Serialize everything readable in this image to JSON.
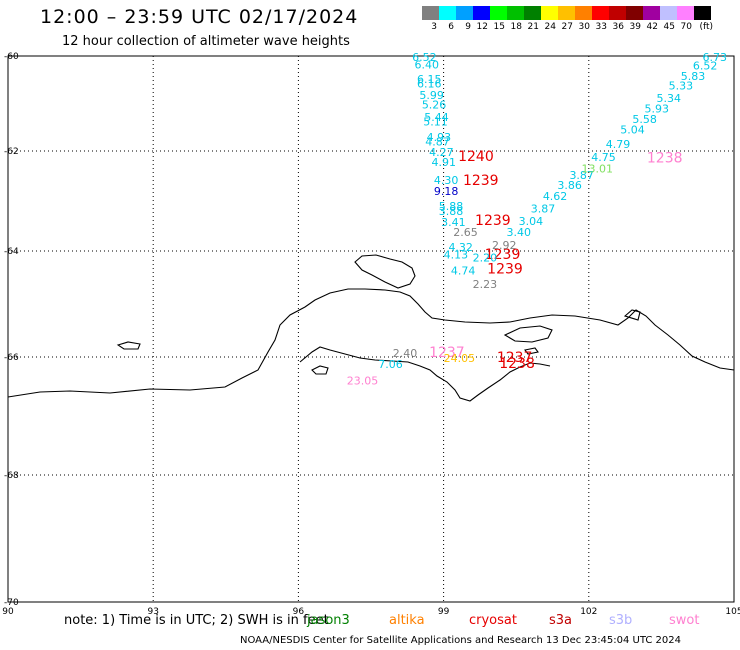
{
  "title": "12:00 – 23:59 UTC 02/17/2024",
  "subtitle": "12 hour collection of altimeter wave heights",
  "colorbar": {
    "colors": [
      "#808080",
      "#00ffff",
      "#00a0ff",
      "#0000ff",
      "#00ff00",
      "#00c000",
      "#008000",
      "#ffff00",
      "#ffc000",
      "#ff8000",
      "#ff0000",
      "#c00000",
      "#800000",
      "#a000a0",
      "#c0c0ff",
      "#ff80ff",
      "#000000"
    ],
    "labels": [
      "3",
      "6",
      "9",
      "12",
      "15",
      "18",
      "21",
      "24",
      "27",
      "30",
      "33",
      "36",
      "39",
      "42",
      "45",
      "70",
      "(ft)"
    ]
  },
  "axes": {
    "lon_ticks": [
      "90",
      "93",
      "96",
      "99",
      "102",
      "105"
    ],
    "lat_ticks": [
      "-60",
      "-62",
      "-64",
      "-66",
      "-68",
      "-70"
    ]
  },
  "observations": [
    {
      "text": "6.52",
      "color": "#00c8e6",
      "lon": 98.35,
      "lat": -60.02
    },
    {
      "text": "6.40",
      "color": "#00c8e6",
      "lon": 98.4,
      "lat": -60.18
    },
    {
      "text": "6.15",
      "color": "#00c8e6",
      "lon": 98.45,
      "lat": -60.48
    },
    {
      "text": "6.16",
      "color": "#00c8e6",
      "lon": 98.45,
      "lat": -60.58
    },
    {
      "text": "5.99",
      "color": "#00c8e6",
      "lon": 98.5,
      "lat": -60.82
    },
    {
      "text": "5.26",
      "color": "#00c8e6",
      "lon": 98.55,
      "lat": -61.02
    },
    {
      "text": "5.44",
      "color": "#00c8e6",
      "lon": 98.6,
      "lat": -61.28
    },
    {
      "text": "5.11",
      "color": "#00c8e6",
      "lon": 98.58,
      "lat": -61.38
    },
    {
      "text": "4.93",
      "color": "#00c8e6",
      "lon": 98.65,
      "lat": -61.7
    },
    {
      "text": "4.87",
      "color": "#00c8e6",
      "lon": 98.62,
      "lat": -61.8
    },
    {
      "text": "4.27",
      "color": "#00c8e6",
      "lon": 98.7,
      "lat": -62.02
    },
    {
      "text": "4.91",
      "color": "#00c8e6",
      "lon": 98.75,
      "lat": -62.22
    },
    {
      "text": "1240",
      "color": "#e60000",
      "lon": 99.3,
      "lat": -62.12,
      "big": true
    },
    {
      "text": "4.30",
      "color": "#00c8e6",
      "lon": 98.8,
      "lat": -62.58
    },
    {
      "text": "1239",
      "color": "#e60000",
      "lon": 99.4,
      "lat": -62.6,
      "big": true
    },
    {
      "text": "9.18",
      "color": "#0000c8",
      "lon": 98.8,
      "lat": -62.8
    },
    {
      "text": "5.88",
      "color": "#00c8e6",
      "lon": 98.9,
      "lat": -63.1
    },
    {
      "text": "3.88",
      "color": "#00c8e6",
      "lon": 98.9,
      "lat": -63.2
    },
    {
      "text": "3.41",
      "color": "#00c8e6",
      "lon": 98.95,
      "lat": -63.42
    },
    {
      "text": "1239",
      "color": "#e60000",
      "lon": 99.65,
      "lat": -63.4,
      "big": true
    },
    {
      "text": "2.65",
      "color": "#808080",
      "lon": 99.2,
      "lat": -63.62
    },
    {
      "text": "4.32",
      "color": "#00c8e6",
      "lon": 99.1,
      "lat": -63.92
    },
    {
      "text": "4.13",
      "color": "#00c8e6",
      "lon": 99.0,
      "lat": -64.07
    },
    {
      "text": "1239",
      "color": "#e60000",
      "lon": 99.85,
      "lat": -64.08,
      "big": true
    },
    {
      "text": "4.74",
      "color": "#00c8e6",
      "lon": 99.15,
      "lat": -64.37
    },
    {
      "text": "2.20",
      "color": "#00c8e6",
      "lon": 99.6,
      "lat": -64.12
    },
    {
      "text": "1239",
      "color": "#e60000",
      "lon": 99.9,
      "lat": -64.35,
      "big": true
    },
    {
      "text": "2.23",
      "color": "#808080",
      "lon": 99.6,
      "lat": -64.62
    },
    {
      "text": "2.92",
      "color": "#808080",
      "lon": 100.0,
      "lat": -63.88
    },
    {
      "text": "3.40",
      "color": "#00c8e6",
      "lon": 100.3,
      "lat": -63.62
    },
    {
      "text": "3.04",
      "color": "#00c8e6",
      "lon": 100.55,
      "lat": -63.4
    },
    {
      "text": "3.87",
      "color": "#00c8e6",
      "lon": 100.8,
      "lat": -63.15
    },
    {
      "text": "4.62",
      "color": "#00c8e6",
      "lon": 101.05,
      "lat": -62.9
    },
    {
      "text": "3.86",
      "color": "#00c8e6",
      "lon": 101.35,
      "lat": -62.68
    },
    {
      "text": "3.87",
      "color": "#00c8e6",
      "lon": 101.6,
      "lat": -62.48
    },
    {
      "text": "13.01",
      "color": "#80e060",
      "lon": 101.85,
      "lat": -62.35
    },
    {
      "text": "4.75",
      "color": "#00c8e6",
      "lon": 102.05,
      "lat": -62.12
    },
    {
      "text": "1238",
      "color": "#ff80d0",
      "lon": 103.2,
      "lat": -62.15,
      "big": true
    },
    {
      "text": "4.79",
      "color": "#00c8e6",
      "lon": 102.35,
      "lat": -61.85
    },
    {
      "text": "5.04",
      "color": "#00c8e6",
      "lon": 102.65,
      "lat": -61.55
    },
    {
      "text": "5.58",
      "color": "#00c8e6",
      "lon": 102.9,
      "lat": -61.33
    },
    {
      "text": "5.93",
      "color": "#00c8e6",
      "lon": 103.15,
      "lat": -61.1
    },
    {
      "text": "5.34",
      "color": "#00c8e6",
      "lon": 103.4,
      "lat": -60.88
    },
    {
      "text": "5.33",
      "color": "#00c8e6",
      "lon": 103.65,
      "lat": -60.62
    },
    {
      "text": "5.83",
      "color": "#00c8e6",
      "lon": 103.9,
      "lat": -60.42
    },
    {
      "text": "6.52",
      "color": "#00c8e6",
      "lon": 104.15,
      "lat": -60.2
    },
    {
      "text": "6.73",
      "color": "#00c8e6",
      "lon": 104.35,
      "lat": -60.02
    },
    {
      "text": "2.40",
      "color": "#808080",
      "lon": 97.95,
      "lat": -65.92
    },
    {
      "text": "7.06",
      "color": "#00c8e6",
      "lon": 97.65,
      "lat": -66.12
    },
    {
      "text": "1237",
      "color": "#ff80d0",
      "lon": 98.7,
      "lat": -65.92,
      "big": true
    },
    {
      "text": "24.05",
      "color": "#ffc000",
      "lon": 99.0,
      "lat": -66.02
    },
    {
      "text": "1237",
      "color": "#e60000",
      "lon": 100.1,
      "lat": -66.02,
      "big": true
    },
    {
      "text": "1238",
      "color": "#e60000",
      "lon": 100.15,
      "lat": -66.12,
      "big": true
    },
    {
      "text": "23.05",
      "color": "#ff80d0",
      "lon": 97.0,
      "lat": -66.4
    }
  ],
  "footnote": "note: 1) Time is in UTC; 2) SWH is in feet",
  "missions": [
    {
      "name": "jason3",
      "color": "#008000"
    },
    {
      "name": "altika",
      "color": "#ff8000"
    },
    {
      "name": "cryosat",
      "color": "#e60000"
    },
    {
      "name": "s3a",
      "color": "#c00000"
    },
    {
      "name": "s3b",
      "color": "#b0b0ff"
    },
    {
      "name": "swot",
      "color": "#ff80d0"
    }
  ],
  "credit": "NOAA/NESDIS Center for Satellite Applications and Research    13 Dec 23:45:04 UTC 2024"
}
